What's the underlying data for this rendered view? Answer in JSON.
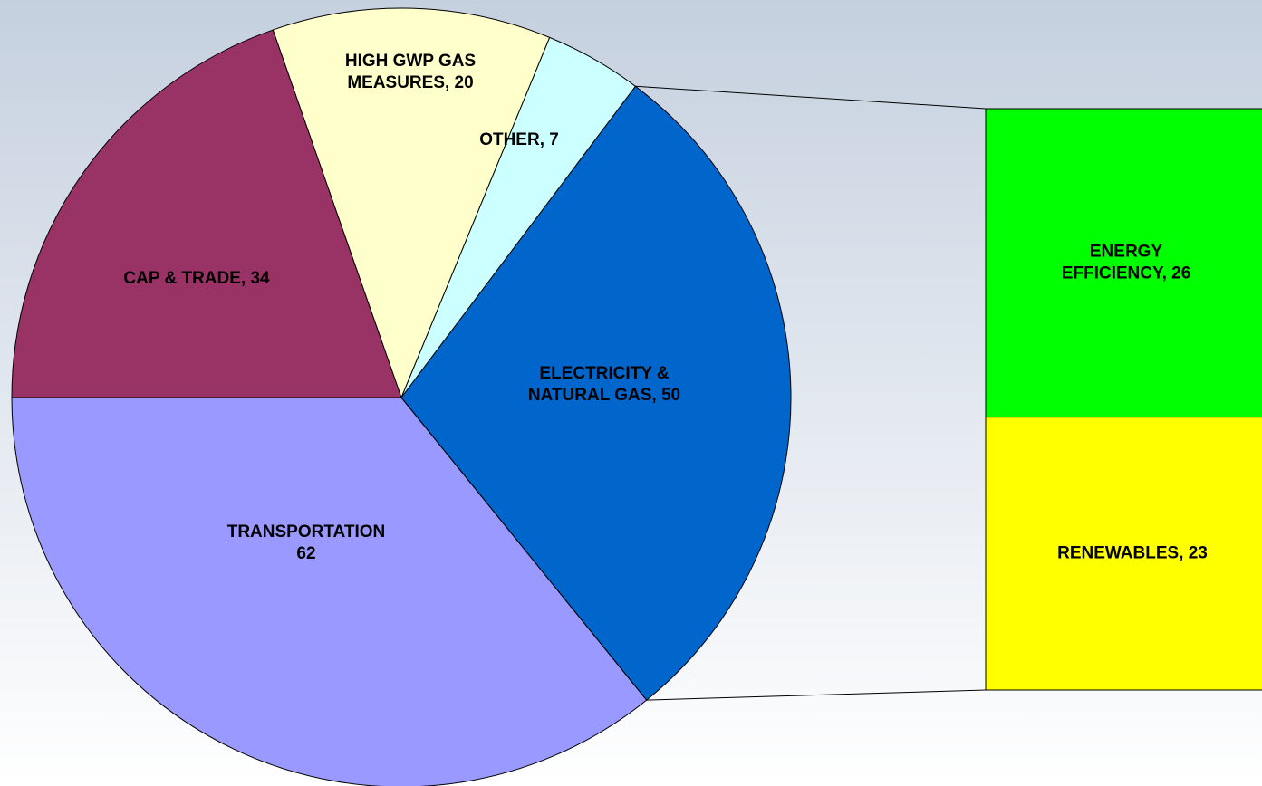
{
  "chart_data": {
    "type": "pie-of-bar",
    "values": [
      62,
      50,
      7,
      20,
      34
    ],
    "value_labels": [
      [
        "TRANSPORTATION",
        "62"
      ],
      [
        "ELECTRICITY &",
        "NATURAL GAS, 50"
      ],
      [
        "OTHER, 7"
      ],
      [
        "HIGH GWP GAS",
        "MEASURES, 20"
      ],
      [
        "CAP & TRADE, 34"
      ]
    ],
    "colors": [
      "#9999ff",
      "#0066cc",
      "#ccffff",
      "#ffffcc",
      "#993366"
    ],
    "breakdown": {
      "of": 1,
      "values": [
        26,
        23
      ],
      "value_labels": [
        [
          "ENERGY",
          "EFFICIENCY, 26"
        ],
        [
          "RENEWABLES, 23"
        ]
      ],
      "colors": [
        "#00ff00",
        "#ffff00"
      ]
    }
  }
}
